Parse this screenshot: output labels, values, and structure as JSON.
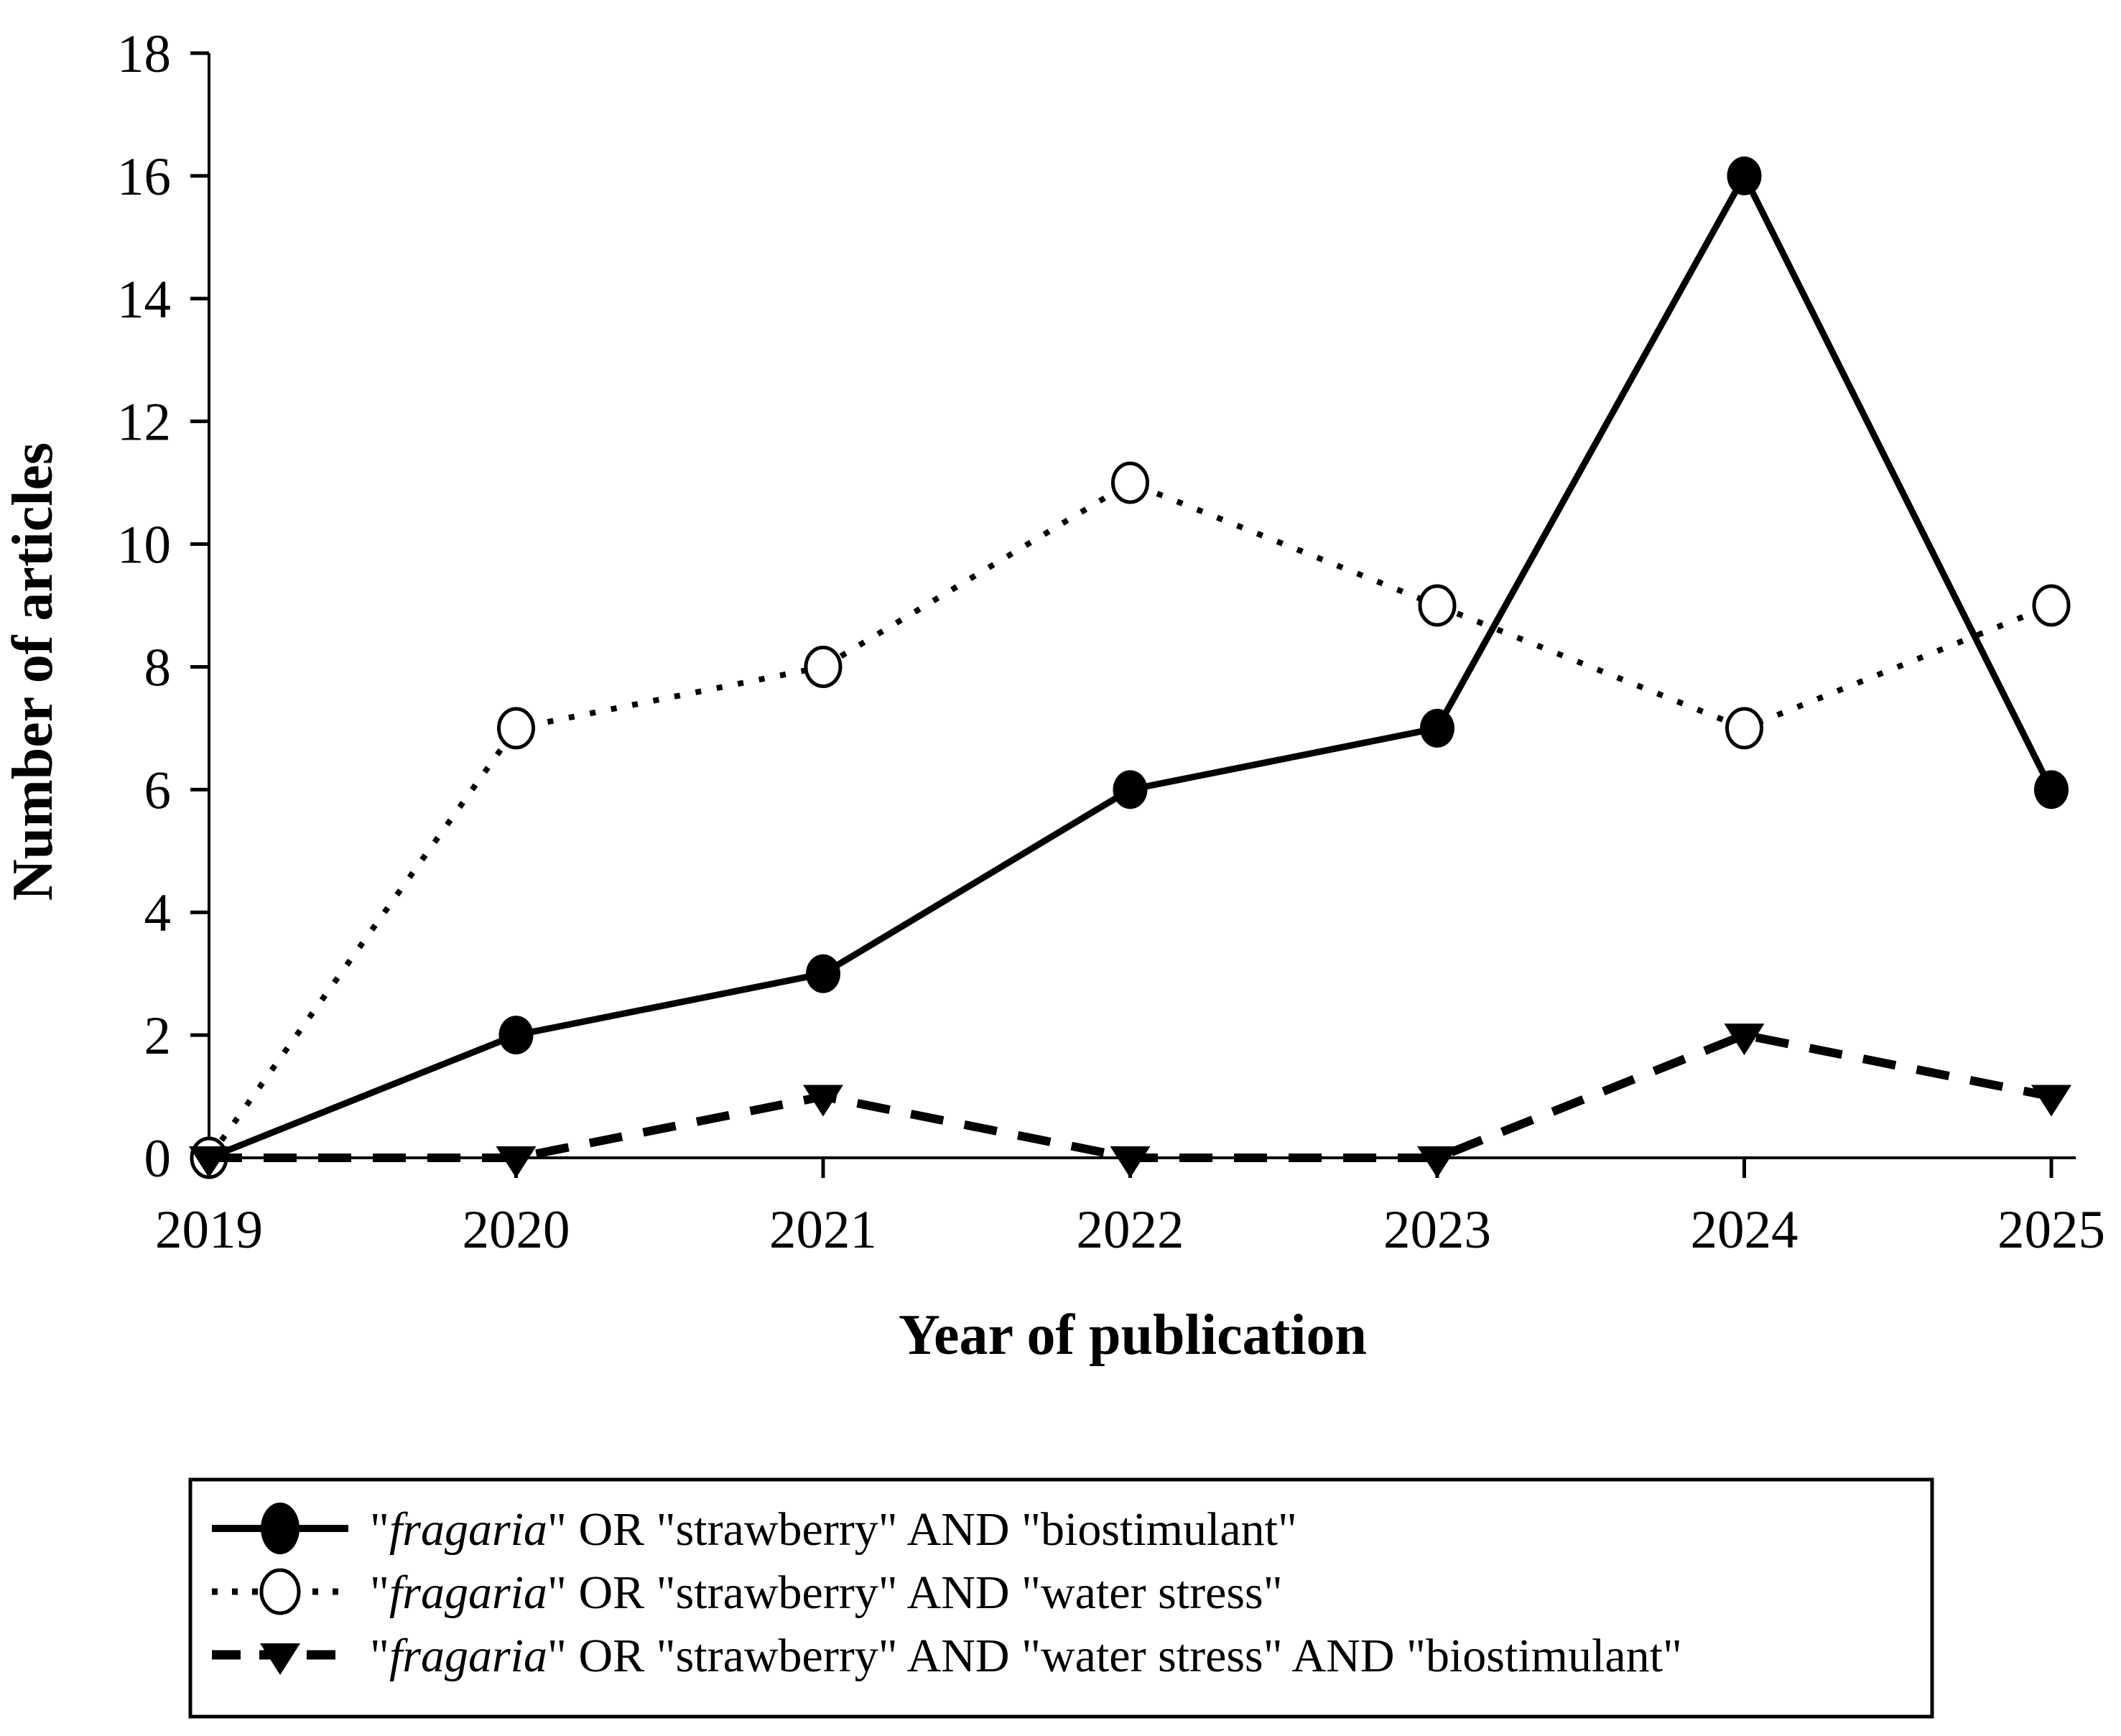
{
  "chart_data": {
    "type": "line",
    "title": "",
    "xlabel": "Year of publication",
    "ylabel": "Number of articles",
    "x_categories": [
      "2019",
      "2020",
      "2021",
      "2022",
      "2023",
      "2024",
      "2025"
    ],
    "yticks": [
      "0",
      "2",
      "4",
      "6",
      "8",
      "10",
      "12",
      "14",
      "16",
      "18"
    ],
    "ylim": [
      0,
      18
    ],
    "ytick_step": 2,
    "grid": false,
    "legend_position": "bottom box",
    "colors": {
      "ink": "#000000",
      "background": "#ffffff"
    },
    "italic_token": "fragaria",
    "series": [
      {
        "name": "\"fragaria\" OR \"strawberry\" AND \"biostimulant\"",
        "marker": "filled-circle",
        "line_style": "solid",
        "values": [
          0,
          2,
          3,
          6,
          7,
          16,
          6
        ]
      },
      {
        "name": "\"fragaria\" OR \"strawberry\" AND \"water stress\"",
        "marker": "open-circle",
        "line_style": "dotted",
        "values": [
          0,
          7,
          8,
          11,
          9,
          7,
          9
        ]
      },
      {
        "name": "\"fragaria\" OR \"strawberry\" AND \"water stress\" AND \"biostimulant\"",
        "marker": "filled-triangle-down",
        "line_style": "dashed",
        "values": [
          0,
          0,
          1,
          0,
          0,
          2,
          1
        ]
      }
    ]
  }
}
